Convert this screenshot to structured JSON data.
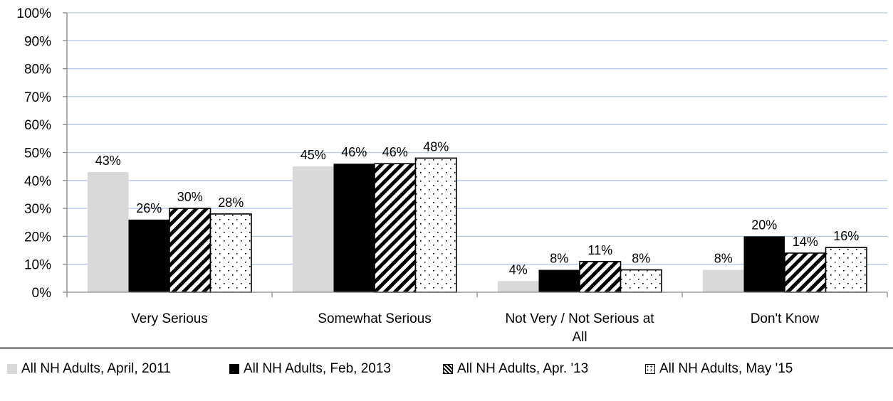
{
  "chart_data": {
    "type": "bar",
    "title": "",
    "xlabel": "",
    "ylabel": "",
    "ylim": [
      0,
      100
    ],
    "yticks": [
      "0%",
      "10%",
      "20%",
      "30%",
      "40%",
      "50%",
      "60%",
      "70%",
      "80%",
      "90%",
      "100%"
    ],
    "grid": true,
    "legend_position": "bottom",
    "categories": [
      "Very Serious",
      "Somewhat Serious",
      "Not Very / Not Serious at All",
      "Don't Know"
    ],
    "series": [
      {
        "name": "All NH Adults, April, 2011",
        "values": [
          43,
          45,
          4,
          8
        ],
        "labels": [
          "43%",
          "45%",
          "4%",
          "8%"
        ],
        "color": "#d9d9d9",
        "pattern": "solid"
      },
      {
        "name": "All NH Adults, Feb, 2013",
        "values": [
          26,
          46,
          8,
          20
        ],
        "labels": [
          "26%",
          "46%",
          "8%",
          "20%"
        ],
        "color": "#000000",
        "pattern": "solid"
      },
      {
        "name": "All NH Adults, Apr. '13",
        "values": [
          30,
          46,
          11,
          14
        ],
        "labels": [
          "30%",
          "46%",
          "11%",
          "14%"
        ],
        "color": "#000000",
        "pattern": "diagonal-stripes"
      },
      {
        "name": "All NH Adults, May '15",
        "values": [
          28,
          48,
          8,
          16
        ],
        "labels": [
          "28%",
          "48%",
          "8%",
          "16%"
        ],
        "color": "#000000",
        "pattern": "dots"
      }
    ]
  },
  "colors": {
    "gridline": "#b4c7e7",
    "axis": "#868686"
  }
}
